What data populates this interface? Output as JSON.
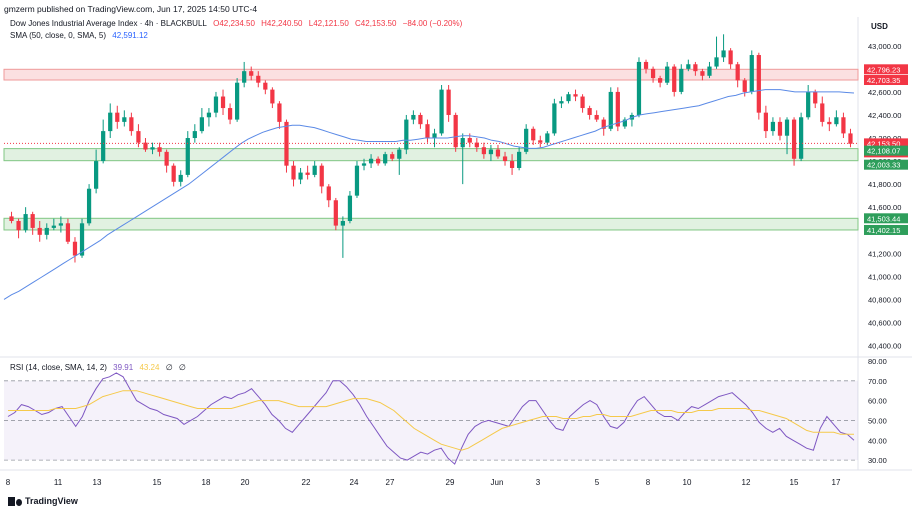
{
  "publisher": "gmzerm published on TradingView.com, Jun 17, 2025 14:50 UTC-4",
  "symbol_legend": {
    "name": "Dow Jones Industrial Average Index · 4h · BLACKBULL",
    "o": "O42,234.50",
    "h": "H42,240.50",
    "l": "L42,121.50",
    "c": "C42,153.50",
    "chg": "−84.00 (−0.20%)"
  },
  "sma_legend": {
    "label": "SMA (50, close, 0, SMA, 5)",
    "value": "42,591.12"
  },
  "rsi_legend": {
    "label": "RSI (14, close, SMA, 14, 2)",
    "rsi": "39.91",
    "rsi_ma": "43.24",
    "extra1": "∅",
    "extra2": "∅"
  },
  "currency": "USD",
  "footer": "TradingView",
  "colors": {
    "up": "#089981",
    "down": "#f23645",
    "sma": "#5b8ae6",
    "rsi": "#7e57c2",
    "rsi_ma": "#f5c94a",
    "resistance_zone": "#f7c6c9",
    "support_zone": "#c8e6c9"
  },
  "chart_data": [
    {
      "type": "candlestick",
      "title": "Dow Jones Industrial Average Index · 4h · BLACKBULL",
      "ylim": [
        40300,
        43250
      ],
      "y_ticks": [
        "43,000.00",
        "42,800.00",
        "42,600.00",
        "42,400.00",
        "42,200.00",
        "42,000.00",
        "41,800.00",
        "41,600.00",
        "41,400.00",
        "41,200.00",
        "41,000.00",
        "40,800.00",
        "40,600.00",
        "40,400.00"
      ],
      "x_ticks": [
        "8",
        "11",
        "13",
        "15",
        "18",
        "20",
        "22",
        "24",
        "27",
        "29",
        "Jun",
        "3",
        "5",
        "8",
        "10",
        "12",
        "15",
        "17"
      ],
      "price_labels": [
        {
          "text": "42,796.23",
          "kind": "red"
        },
        {
          "text": "42,703.35",
          "kind": "red"
        },
        {
          "text": "42,153.50",
          "kind": "red"
        },
        {
          "text": "02:09:47",
          "kind": "red"
        },
        {
          "text": "42,108.07",
          "kind": "green"
        },
        {
          "text": "42,003.33",
          "kind": "green"
        },
        {
          "text": "41,503.44",
          "kind": "green"
        },
        {
          "text": "41,402.15",
          "kind": "green"
        }
      ],
      "zones": [
        {
          "from": 42703.35,
          "to": 42796.23,
          "kind": "resistance"
        },
        {
          "from": 42003.33,
          "to": 42108.07,
          "kind": "support"
        },
        {
          "from": 41402.15,
          "to": 41503.44,
          "kind": "support"
        }
      ],
      "last_price": 42153.5,
      "candles": [
        [
          41520,
          41560,
          41460,
          41480
        ],
        [
          41480,
          41500,
          41330,
          41400
        ],
        [
          41400,
          41600,
          41380,
          41540
        ],
        [
          41540,
          41560,
          41360,
          41420
        ],
        [
          41420,
          41480,
          41300,
          41360
        ],
        [
          41360,
          41460,
          41320,
          41420
        ],
        [
          41420,
          41500,
          41400,
          41440
        ],
        [
          41440,
          41520,
          41380,
          41460
        ],
        [
          41460,
          41500,
          41280,
          41300
        ],
        [
          41300,
          41340,
          41120,
          41180
        ],
        [
          41180,
          41500,
          41160,
          41460
        ],
        [
          41460,
          41800,
          41440,
          41760
        ],
        [
          41760,
          42100,
          41720,
          42000
        ],
        [
          42000,
          42360,
          41980,
          42260
        ],
        [
          42260,
          42500,
          42200,
          42420
        ],
        [
          42420,
          42480,
          42280,
          42340
        ],
        [
          42340,
          42440,
          42300,
          42380
        ],
        [
          42380,
          42420,
          42220,
          42260
        ],
        [
          42260,
          42320,
          42120,
          42160
        ],
        [
          42160,
          42200,
          42080,
          42100
        ],
        [
          42100,
          42160,
          42060,
          42120
        ],
        [
          42120,
          42160,
          42040,
          42080
        ],
        [
          42080,
          42100,
          41900,
          41960
        ],
        [
          41960,
          41980,
          41780,
          41820
        ],
        [
          41820,
          41920,
          41780,
          41880
        ],
        [
          41880,
          42260,
          41860,
          42200
        ],
        [
          42200,
          42320,
          42160,
          42260
        ],
        [
          42260,
          42460,
          42240,
          42380
        ],
        [
          42380,
          42460,
          42300,
          42420
        ],
        [
          42420,
          42600,
          42380,
          42560
        ],
        [
          42560,
          42620,
          42400,
          42460
        ],
        [
          42460,
          42500,
          42320,
          42360
        ],
        [
          42360,
          42720,
          42340,
          42680
        ],
        [
          42680,
          42860,
          42640,
          42780
        ],
        [
          42780,
          42820,
          42700,
          42740
        ],
        [
          42740,
          42780,
          42640,
          42680
        ],
        [
          42680,
          42700,
          42580,
          42620
        ],
        [
          42620,
          42640,
          42460,
          42500
        ],
        [
          42500,
          42520,
          42280,
          42340
        ],
        [
          42340,
          42360,
          41900,
          41960
        ],
        [
          41960,
          42000,
          41780,
          41840
        ],
        [
          41840,
          41940,
          41800,
          41900
        ],
        [
          41900,
          41960,
          41840,
          41880
        ],
        [
          41880,
          42000,
          41860,
          41960
        ],
        [
          41960,
          41980,
          41720,
          41780
        ],
        [
          41780,
          41800,
          41600,
          41660
        ],
        [
          41660,
          41680,
          41400,
          41440
        ],
        [
          41440,
          41520,
          41160,
          41480
        ],
        [
          41480,
          41740,
          41460,
          41700
        ],
        [
          41700,
          42000,
          41680,
          41960
        ],
        [
          41960,
          42020,
          41920,
          41980
        ],
        [
          41980,
          42060,
          41940,
          42020
        ],
        [
          42020,
          42040,
          41960,
          41980
        ],
        [
          41980,
          42080,
          41960,
          42060
        ],
        [
          42060,
          42080,
          42000,
          42020
        ],
        [
          42020,
          42120,
          41880,
          42100
        ],
        [
          42100,
          42400,
          42060,
          42360
        ],
        [
          42360,
          42440,
          42320,
          42400
        ],
        [
          42400,
          42420,
          42280,
          42320
        ],
        [
          42320,
          42360,
          42160,
          42200
        ],
        [
          42200,
          42280,
          42120,
          42240
        ],
        [
          42240,
          42660,
          42220,
          42620
        ],
        [
          42620,
          42660,
          42340,
          42400
        ],
        [
          42400,
          42420,
          42080,
          42120
        ],
        [
          42120,
          42240,
          41800,
          42200
        ],
        [
          42200,
          42240,
          42120,
          42160
        ],
        [
          42160,
          42200,
          42080,
          42120
        ],
        [
          42120,
          42160,
          42020,
          42060
        ],
        [
          42060,
          42140,
          42000,
          42100
        ],
        [
          42100,
          42140,
          42020,
          42040
        ],
        [
          42040,
          42080,
          41960,
          42000
        ],
        [
          42000,
          42060,
          41880,
          41940
        ],
        [
          41940,
          42120,
          41920,
          42080
        ],
        [
          42080,
          42320,
          42060,
          42280
        ],
        [
          42280,
          42300,
          42140,
          42180
        ],
        [
          42180,
          42220,
          42120,
          42160
        ],
        [
          42160,
          42260,
          42140,
          42240
        ],
        [
          42240,
          42540,
          42220,
          42500
        ],
        [
          42500,
          42560,
          42460,
          42520
        ],
        [
          42520,
          42600,
          42500,
          42580
        ],
        [
          42580,
          42620,
          42520,
          42560
        ],
        [
          42560,
          42580,
          42420,
          42460
        ],
        [
          42460,
          42480,
          42360,
          42400
        ],
        [
          42400,
          42440,
          42340,
          42360
        ],
        [
          42360,
          42380,
          42220,
          42280
        ],
        [
          42280,
          42640,
          42260,
          42600
        ],
        [
          42600,
          42640,
          42260,
          42300
        ],
        [
          42300,
          42380,
          42280,
          42360
        ],
        [
          42360,
          42420,
          42300,
          42400
        ],
        [
          42400,
          42900,
          42380,
          42860
        ],
        [
          42860,
          42880,
          42760,
          42800
        ],
        [
          42800,
          42820,
          42680,
          42720
        ],
        [
          42720,
          42740,
          42640,
          42680
        ],
        [
          42680,
          42860,
          42660,
          42820
        ],
        [
          42820,
          42840,
          42560,
          42600
        ],
        [
          42600,
          42840,
          42580,
          42800
        ],
        [
          42800,
          42880,
          42780,
          42840
        ],
        [
          42840,
          42860,
          42740,
          42780
        ],
        [
          42780,
          42800,
          42700,
          42740
        ],
        [
          42740,
          42860,
          42720,
          42820
        ],
        [
          42820,
          43080,
          42800,
          42900
        ],
        [
          42900,
          43100,
          42860,
          42960
        ],
        [
          42960,
          42980,
          42800,
          42840
        ],
        [
          42840,
          42860,
          42640,
          42700
        ],
        [
          42700,
          42720,
          42560,
          42600
        ],
        [
          42600,
          42960,
          42580,
          42920
        ],
        [
          42920,
          42940,
          42360,
          42420
        ],
        [
          42420,
          42480,
          42200,
          42260
        ],
        [
          42260,
          42380,
          42220,
          42340
        ],
        [
          42340,
          42380,
          42180,
          42220
        ],
        [
          42220,
          42380,
          42060,
          42360
        ],
        [
          42360,
          42380,
          41960,
          42020
        ],
        [
          42020,
          42420,
          42000,
          42380
        ],
        [
          42380,
          42660,
          42360,
          42600
        ],
        [
          42600,
          42620,
          42460,
          42500
        ],
        [
          42500,
          42560,
          42300,
          42340
        ],
        [
          42340,
          42380,
          42260,
          42320
        ],
        [
          42320,
          42440,
          42300,
          42380
        ],
        [
          42380,
          42420,
          42200,
          42240
        ],
        [
          42240,
          42280,
          42120,
          42150
        ]
      ],
      "sma": [
        40800,
        40840,
        40870,
        40910,
        40950,
        40990,
        41030,
        41070,
        41110,
        41150,
        41190,
        41230,
        41270,
        41310,
        41360,
        41400,
        41440,
        41480,
        41520,
        41560,
        41600,
        41640,
        41680,
        41720,
        41760,
        41800,
        41850,
        41900,
        41950,
        42000,
        42050,
        42100,
        42150,
        42190,
        42220,
        42250,
        42270,
        42290,
        42300,
        42310,
        42310,
        42300,
        42290,
        42270,
        42250,
        42230,
        42210,
        42190,
        42180,
        42170,
        42170,
        42170,
        42170,
        42170,
        42180,
        42180,
        42190,
        42200,
        42200,
        42200,
        42200,
        42210,
        42220,
        42220,
        42210,
        42200,
        42180,
        42170,
        42150,
        42130,
        42120,
        42110,
        42110,
        42120,
        42140,
        42160,
        42180,
        42200,
        42220,
        42240,
        42260,
        42290,
        42310,
        42330,
        42350,
        42380,
        42400,
        42410,
        42420,
        42430,
        42440,
        42450,
        42460,
        42470,
        42480,
        42500,
        42520,
        42540,
        42560,
        42570,
        42590,
        42600,
        42610,
        42620,
        42620,
        42620,
        42610,
        42600,
        42600,
        42600,
        42600,
        42600,
        42600,
        42600,
        42595,
        42591
      ]
    },
    {
      "type": "line",
      "title": "RSI (14, close, SMA, 14, 2)",
      "ylim": [
        25,
        82
      ],
      "y_ticks": [
        "80.00",
        "70.00",
        "60.00",
        "50.00",
        "40.00",
        "30.00"
      ],
      "levels": [
        70,
        50,
        30
      ],
      "series": [
        {
          "name": "RSI",
          "values": [
            52,
            54,
            58,
            57,
            55,
            53,
            54,
            56,
            57,
            52,
            47,
            52,
            60,
            66,
            71,
            72,
            74,
            72,
            66,
            60,
            58,
            56,
            55,
            53,
            52,
            51,
            48,
            50,
            52,
            55,
            58,
            60,
            62,
            61,
            63,
            64,
            66,
            62,
            58,
            53,
            50,
            46,
            44,
            48,
            52,
            56,
            60,
            64,
            70,
            70,
            67,
            63,
            58,
            52,
            47,
            42,
            37,
            34,
            31,
            30,
            32,
            34,
            33,
            35,
            36,
            31,
            28,
            36,
            43,
            47,
            49,
            50,
            49,
            48,
            47,
            52,
            57,
            60,
            60,
            55,
            50,
            46,
            45,
            52,
            55,
            58,
            60,
            58,
            52,
            47,
            46,
            49,
            55,
            60,
            62,
            58,
            54,
            52,
            52,
            50,
            54,
            57,
            56,
            58,
            60,
            62,
            63,
            64,
            61,
            58,
            54,
            49,
            46,
            44,
            46,
            42,
            40,
            38,
            36,
            35,
            46,
            52,
            48,
            44,
            43,
            40
          ]
        },
        {
          "name": "RSI MA",
          "values": [
            55,
            55,
            55,
            55,
            55,
            55,
            55,
            56,
            56,
            56,
            56,
            57,
            58,
            60,
            62,
            63,
            64,
            65,
            65,
            65,
            64,
            63,
            62,
            61,
            60,
            59,
            58,
            57,
            56,
            56,
            56,
            56,
            56,
            56,
            57,
            58,
            59,
            60,
            60,
            60,
            60,
            59,
            58,
            57,
            57,
            57,
            57,
            57,
            58,
            59,
            60,
            61,
            61,
            61,
            60,
            59,
            57,
            55,
            52,
            49,
            46,
            44,
            42,
            40,
            38,
            37,
            36,
            35,
            36,
            38,
            40,
            42,
            44,
            46,
            47,
            48,
            49,
            50,
            51,
            52,
            52,
            52,
            51,
            51,
            51,
            52,
            52,
            53,
            53,
            52,
            52,
            52,
            52,
            53,
            54,
            55,
            55,
            55,
            55,
            54,
            54,
            54,
            55,
            55,
            55,
            56,
            56,
            56,
            56,
            56,
            55,
            55,
            54,
            53,
            52,
            51,
            49,
            47,
            45,
            44,
            44,
            44,
            44,
            43,
            43,
            43
          ]
        }
      ]
    }
  ]
}
